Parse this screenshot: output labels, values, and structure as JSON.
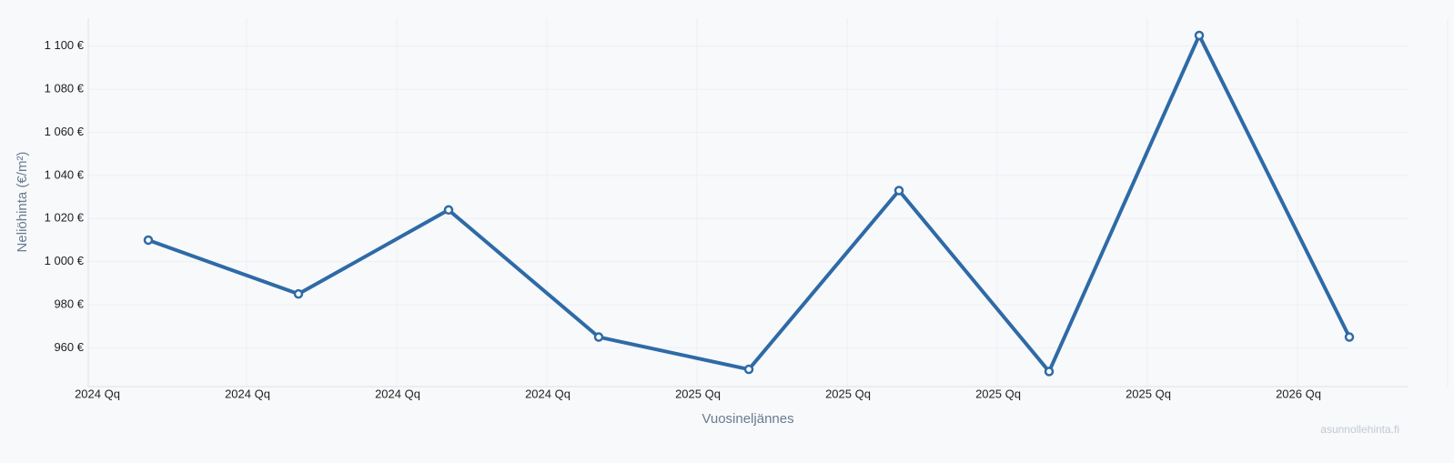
{
  "chart_data": {
    "type": "line",
    "x_label": "Vuosineljännes",
    "y_label": "Neliöhinta (€/m²)",
    "watermark": "asunnollehinta.fi",
    "categories": [
      "2024 Qq",
      "2024 Qq",
      "2024 Qq",
      "2024 Qq",
      "2025 Qq",
      "2025 Qq",
      "2025 Qq",
      "2025 Qq",
      "2026 Qq"
    ],
    "series": [
      {
        "name": "Neliöhinta",
        "color": "#2e6aa6",
        "values": [
          1010,
          985,
          1024,
          965,
          950,
          1033,
          949,
          1105,
          965
        ]
      }
    ],
    "ylim": [
      942,
      1113
    ],
    "yticks": [
      {
        "value": 960,
        "label": "960 €"
      },
      {
        "value": 980,
        "label": "980 €"
      },
      {
        "value": 1000,
        "label": "1 000 €"
      },
      {
        "value": 1020,
        "label": "1 020 €"
      },
      {
        "value": 1040,
        "label": "1 040 €"
      },
      {
        "value": 1060,
        "label": "1 060 €"
      },
      {
        "value": 1080,
        "label": "1 080 €"
      },
      {
        "value": 1100,
        "label": "1 100 €"
      }
    ],
    "grid": true
  }
}
